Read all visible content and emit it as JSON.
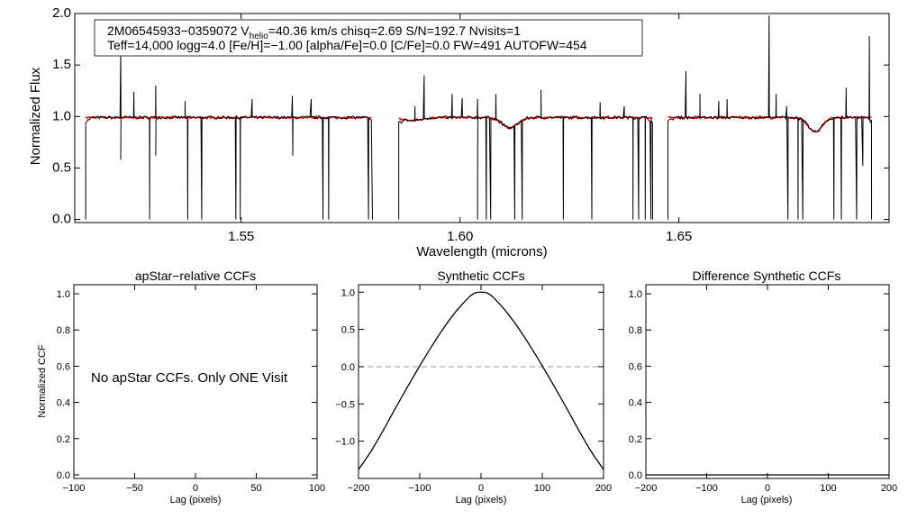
{
  "figure": {
    "header_line1_a": "2M06545933−0359072  V",
    "header_line1_sub": "helio",
    "header_line1_b": "=40.36 km/s  chisq=2.69  S/N=192.7  Nvisits=1",
    "header_line2": "Teff=14,000 logg=4.0 [Fe/H]=−1.00 [alpha/Fe]=0.0 [C/Fe]=0.0 FW=491 AUTOFW=454"
  },
  "colors": {
    "spectrum": "#000000",
    "model": "#ff0000",
    "axes": "#000000",
    "zero_line": "#999999"
  },
  "chart_data": [
    {
      "type": "line",
      "id": "spectrum",
      "xlabel": "Wavelength (microns)",
      "ylabel": "Normalized Flux",
      "xlim": [
        1.512,
        1.698
      ],
      "ylim": [
        -0.03,
        2.0
      ],
      "xticks": [
        1.55,
        1.6,
        1.65
      ],
      "xtick_labels": [
        "1.55",
        "1.60",
        "1.65"
      ],
      "yticks": [
        0.0,
        0.5,
        1.0,
        1.5,
        2.0
      ],
      "ytick_labels": [
        "0.0",
        "0.5",
        "1.0",
        "1.5",
        "2.0"
      ],
      "chips": [
        [
          1.5145,
          1.58
        ],
        [
          1.586,
          1.644
        ],
        [
          1.6475,
          1.694
        ]
      ],
      "continuum": 0.99,
      "absorption_features": [
        {
          "center": 1.6114,
          "depth": 0.1,
          "width": 0.0025
        },
        {
          "center": 1.6811,
          "depth": 0.14,
          "width": 0.0022
        },
        {
          "center": 1.589,
          "depth": 0.03,
          "width": 0.003
        }
      ],
      "spikes_up": [
        [
          1.5225,
          1.62
        ],
        [
          1.5255,
          1.24
        ],
        [
          1.5305,
          1.3
        ],
        [
          1.5372,
          1.15
        ],
        [
          1.5525,
          1.17
        ],
        [
          1.5617,
          1.2
        ],
        [
          1.566,
          1.17
        ],
        [
          1.5897,
          1.1
        ],
        [
          1.5918,
          1.4
        ],
        [
          1.5982,
          1.22
        ],
        [
          1.6005,
          1.18
        ],
        [
          1.604,
          1.17
        ],
        [
          1.6082,
          1.22
        ],
        [
          1.6185,
          1.26
        ],
        [
          1.632,
          1.14
        ],
        [
          1.6375,
          1.1
        ],
        [
          1.6516,
          1.44
        ],
        [
          1.6548,
          1.22
        ],
        [
          1.6591,
          1.15
        ],
        [
          1.661,
          1.17
        ],
        [
          1.6706,
          1.98
        ],
        [
          1.6722,
          1.22
        ],
        [
          1.6746,
          1.1
        ],
        [
          1.6882,
          1.28
        ],
        [
          1.6935,
          1.78
        ],
        [
          1.586,
          1.05
        ]
      ],
      "spikes_down": [
        [
          1.5225,
          0.58
        ],
        [
          1.5291,
          0.0
        ],
        [
          1.5305,
          0.62
        ],
        [
          1.5378,
          0.0
        ],
        [
          1.541,
          0.0
        ],
        [
          1.5488,
          0.0
        ],
        [
          1.5498,
          0.0
        ],
        [
          1.5618,
          0.62
        ],
        [
          1.5687,
          0.0
        ],
        [
          1.57,
          0.0
        ],
        [
          1.5791,
          0.0
        ],
        [
          1.604,
          0.0
        ],
        [
          1.606,
          0.0
        ],
        [
          1.607,
          0.0
        ],
        [
          1.6125,
          0.0
        ],
        [
          1.6142,
          0.0
        ],
        [
          1.6236,
          0.0
        ],
        [
          1.6301,
          0.0
        ],
        [
          1.6395,
          0.0
        ],
        [
          1.6408,
          0.0
        ],
        [
          1.6423,
          0.0
        ],
        [
          1.6436,
          0.0
        ],
        [
          1.6749,
          0.0
        ],
        [
          1.6772,
          0.0
        ],
        [
          1.6783,
          0.0
        ],
        [
          1.6854,
          0.0
        ],
        [
          1.6871,
          0.0
        ],
        [
          1.6906,
          0.0
        ],
        [
          1.692,
          0.52
        ]
      ]
    },
    {
      "type": "line",
      "id": "apstar_ccf",
      "title": "apStar−relative CCFs",
      "xlabel": "Lag (pixels)",
      "ylabel": "Normalized CCF",
      "xlim": [
        -100,
        100
      ],
      "ylim": [
        -0.02,
        1.05
      ],
      "xticks": [
        -100,
        -50,
        0,
        50,
        100
      ],
      "xtick_labels": [
        "−100",
        "−50",
        "0",
        "50",
        "100"
      ],
      "yticks": [
        0.0,
        0.2,
        0.4,
        0.6,
        0.8,
        1.0
      ],
      "ytick_labels": [
        "0.0",
        "0.2",
        "0.4",
        "0.6",
        "0.8",
        "1.0"
      ],
      "annotation": "No apStar CCFs.  Only ONE Visit",
      "series": []
    },
    {
      "type": "line",
      "id": "synthetic_ccf",
      "title": "Synthetic CCFs",
      "xlabel": "Lag (pixels)",
      "ylabel": "",
      "xlim": [
        -200,
        200
      ],
      "ylim": [
        -1.5,
        1.1
      ],
      "xticks": [
        -200,
        -100,
        0,
        100,
        200
      ],
      "xtick_labels": [
        "−200",
        "−100",
        "0",
        "100",
        "200"
      ],
      "yticks": [
        -1.0,
        -0.5,
        0.0,
        0.5,
        1.0
      ],
      "ytick_labels": [
        "−1.0",
        "−0.5",
        "0.0",
        "0.5",
        "1.0"
      ],
      "zero_line": true,
      "series": [
        {
          "x": [
            -200,
            -180,
            -160,
            -140,
            -120,
            -100,
            -80,
            -60,
            -40,
            -20,
            -10,
            0,
            10,
            20,
            40,
            60,
            80,
            100,
            120,
            140,
            160,
            180,
            200
          ],
          "y": [
            -1.38,
            -1.14,
            -0.86,
            -0.56,
            -0.27,
            0.01,
            0.28,
            0.53,
            0.75,
            0.93,
            0.99,
            1.0,
            0.99,
            0.93,
            0.75,
            0.53,
            0.28,
            0.01,
            -0.27,
            -0.56,
            -0.86,
            -1.14,
            -1.38
          ]
        }
      ]
    },
    {
      "type": "line",
      "id": "difference_ccf",
      "title": "Difference Synthetic CCFs",
      "xlabel": "Lag (pixels)",
      "ylabel": "",
      "xlim": [
        -200,
        200
      ],
      "ylim": [
        -0.02,
        1.05
      ],
      "xticks": [
        -200,
        -100,
        0,
        100,
        200
      ],
      "xtick_labels": [
        "−200",
        "−100",
        "0",
        "100",
        "200"
      ],
      "yticks": [
        0.0,
        0.2,
        0.4,
        0.6,
        0.8,
        1.0
      ],
      "ytick_labels": [
        "0.0",
        "0.2",
        "0.4",
        "0.6",
        "0.8",
        "1.0"
      ],
      "series": [
        {
          "x": [
            -200,
            200
          ],
          "y": [
            0.0,
            0.0
          ]
        }
      ]
    }
  ]
}
